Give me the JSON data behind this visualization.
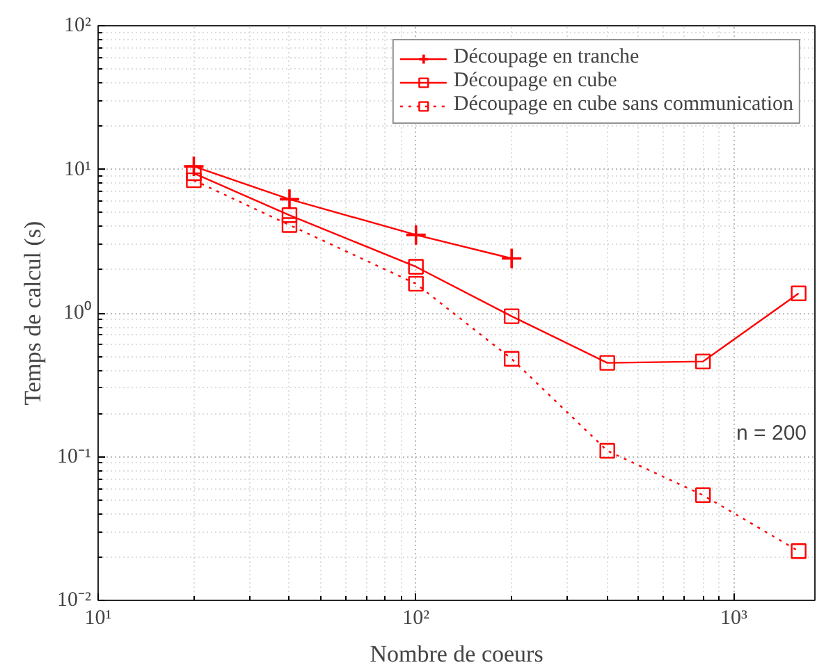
{
  "chart_data": {
    "type": "line",
    "xlabel": "Nombre de coeurs",
    "ylabel": "Temps de calcul (s)",
    "log": "xy",
    "grid": true,
    "legend": "top right",
    "x": [
      20,
      40,
      100,
      200,
      400,
      800,
      1600
    ],
    "xlim": [
      10,
      1800
    ],
    "ylim": [
      0.01,
      100
    ],
    "xticks": [
      {
        "value": 10,
        "label": "10¹"
      },
      {
        "value": 100,
        "label": "10²"
      },
      {
        "value": 1000,
        "label": "10³"
      }
    ],
    "yticks": [
      {
        "value": 0.01,
        "label": "10⁻²"
      },
      {
        "value": 0.1,
        "label": "10⁻¹"
      },
      {
        "value": 1,
        "label": "10⁰"
      },
      {
        "value": 10,
        "label": "10¹"
      },
      {
        "value": 100,
        "label": "10²"
      }
    ],
    "series": [
      {
        "name": "Découpage en tranche",
        "color": "#ff0000",
        "marker": "cross",
        "line_style": "solid",
        "values": [
          10.5,
          6.2,
          3.5,
          2.4,
          null,
          null,
          null
        ]
      },
      {
        "name": "Découpage en cube",
        "color": "#ff0000",
        "marker": "square",
        "line_style": "solid",
        "values": [
          9.4,
          4.8,
          2.1,
          0.95,
          0.45,
          0.46,
          1.37
        ]
      },
      {
        "name": "Découpage en cube sans communication",
        "color": "#ff0000",
        "marker": "square",
        "line_style": "dotted",
        "values": [
          8.4,
          4.1,
          1.6,
          0.48,
          0.11,
          0.054,
          0.022
        ]
      }
    ],
    "annotations": [
      "n = 200"
    ]
  }
}
